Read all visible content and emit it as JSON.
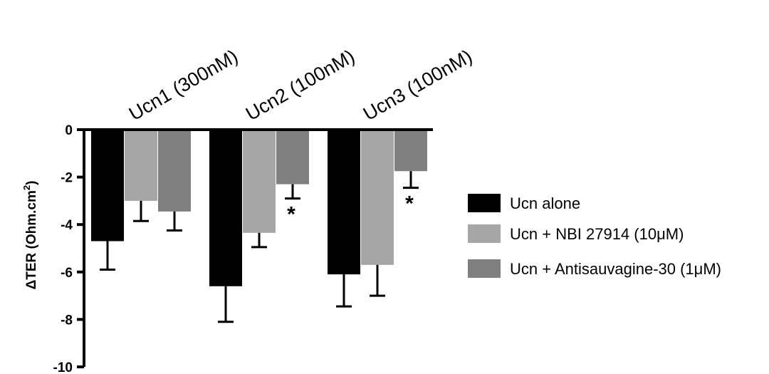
{
  "chart_data": {
    "type": "bar",
    "title": "",
    "xlabel": "",
    "ylabel": "ΔTER (Ohm.cm²)",
    "ylabel_parts": {
      "main": "ΔTER (Ohm.cm",
      "sup": "2",
      "tail": ")"
    },
    "ylim": [
      -10,
      0
    ],
    "yticks": [
      0,
      -2,
      -4,
      -6,
      -8,
      -10
    ],
    "ytick_labels": [
      "0",
      "-2",
      "-4",
      "-6",
      "-8",
      "-10"
    ],
    "categories": [
      "Ucn1 (300nM)",
      "Ucn2 (100nM)",
      "Ucn3 (100nM)"
    ],
    "series": [
      {
        "name": "Ucn alone",
        "color": "#000000",
        "values": [
          -4.7,
          -6.6,
          -6.1
        ],
        "errors": [
          1.2,
          1.5,
          1.35
        ]
      },
      {
        "name": "Ucn + NBI 27914 (10μM)",
        "color": "#a6a6a6",
        "values": [
          -3.0,
          -4.35,
          -5.7
        ],
        "errors": [
          0.85,
          0.6,
          1.3
        ]
      },
      {
        "name": "Ucn + Antisauvagine-30 (1μM)",
        "color": "#808080",
        "values": [
          -3.45,
          -2.3,
          -1.75
        ],
        "errors": [
          0.8,
          0.6,
          0.7
        ]
      }
    ],
    "annotations": [
      {
        "category_index": 1,
        "series_index": 2,
        "text": "*"
      },
      {
        "category_index": 2,
        "series_index": 2,
        "text": "*"
      }
    ],
    "legend_position": "right",
    "grid": false
  }
}
